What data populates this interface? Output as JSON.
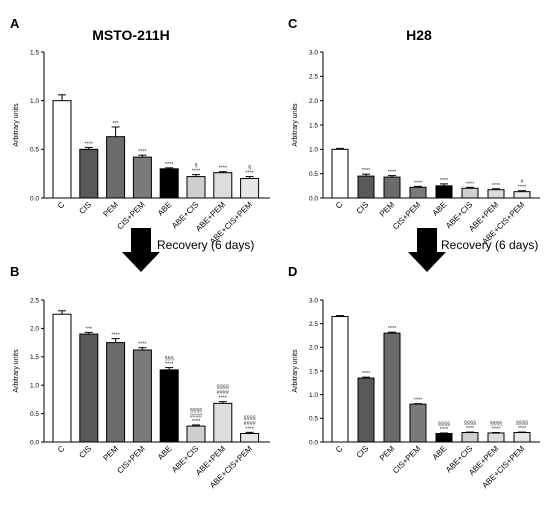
{
  "figure": {
    "recovery_label": "Recovery (6 days)",
    "colors": {
      "C": "#ffffff",
      "CIS": "#595959",
      "PEM": "#6b6b6b",
      "CIS+PEM": "#7a7a7a",
      "ABE": "#000000",
      "ABE+CIS": "#cfcfcf",
      "ABE+PEM": "#dcdcdc",
      "ABE+CIS+PEM": "#e6e6e6"
    }
  },
  "chart_data": [
    {
      "letter": "A",
      "title": "MSTO-211H",
      "type": "bar",
      "categories": [
        "C",
        "CIS",
        "PEM",
        "CIS+PEM",
        "ABE",
        "ABE+CIS",
        "ABE+PEM",
        "ABE+CIS+PEM"
      ],
      "values": [
        1.0,
        0.5,
        0.63,
        0.42,
        0.3,
        0.22,
        0.26,
        0.2
      ],
      "errors": [
        0.06,
        0.02,
        0.1,
        0.02,
        0.01,
        0.02,
        0.01,
        0.02
      ],
      "annotations": [
        [],
        [
          "****"
        ],
        [
          "***"
        ],
        [
          "****"
        ],
        [
          "****"
        ],
        [
          "§",
          "****"
        ],
        [
          "****"
        ],
        [
          "§",
          "****"
        ]
      ],
      "ylabel": "Arbitrary units",
      "ylim": [
        0,
        1.5
      ],
      "yticks": [
        "0.0",
        "0.5",
        "1.0",
        "1.5"
      ],
      "ytick_values": [
        0,
        0.5,
        1.0,
        1.5
      ]
    },
    {
      "letter": "C",
      "title": "H28",
      "type": "bar",
      "categories": [
        "C",
        "CIS",
        "PEM",
        "CIS+PEM",
        "ABE",
        "ABE+CIS",
        "ABE+PEM",
        "ABE+CIS+PEM"
      ],
      "values": [
        1.0,
        0.45,
        0.43,
        0.22,
        0.25,
        0.2,
        0.17,
        0.13
      ],
      "errors": [
        0.02,
        0.04,
        0.03,
        0.02,
        0.04,
        0.02,
        0.02,
        0.02
      ],
      "annotations": [
        [],
        [
          "****"
        ],
        [
          "****"
        ],
        [
          "****"
        ],
        [
          "****"
        ],
        [
          "****"
        ],
        [
          "****"
        ],
        [
          "#",
          "****"
        ]
      ],
      "ylabel": "Arbitrary units",
      "ylim": [
        0,
        3.0
      ],
      "yticks": [
        "0.0",
        "0.5",
        "1.0",
        "1.5",
        "2.0",
        "2.5",
        "3.0"
      ],
      "ytick_values": [
        0,
        0.5,
        1.0,
        1.5,
        2.0,
        2.5,
        3.0
      ]
    },
    {
      "letter": "B",
      "title": "",
      "type": "bar",
      "categories": [
        "C",
        "CIS",
        "PEM",
        "CIS+PEM",
        "ABE",
        "ABE+CIS",
        "ABE+PEM",
        "ABE+CIS+PEM"
      ],
      "values": [
        2.25,
        1.9,
        1.75,
        1.62,
        1.27,
        0.28,
        0.68,
        0.15
      ],
      "errors": [
        0.06,
        0.03,
        0.07,
        0.04,
        0.04,
        0.02,
        0.03,
        0.02
      ],
      "annotations": [
        [],
        [
          "***"
        ],
        [
          "****"
        ],
        [
          "****"
        ],
        [
          "§§§",
          "****"
        ],
        [
          "§§§§",
          "####",
          "****"
        ],
        [
          "§§§§",
          "####",
          "****"
        ],
        [
          "§§§§",
          "####",
          "****"
        ]
      ],
      "ylabel": "Arbitrary units",
      "ylim": [
        0,
        2.5
      ],
      "yticks": [
        "0.0",
        "0.5",
        "1.0",
        "1.5",
        "2.0",
        "2.5"
      ],
      "ytick_values": [
        0,
        0.5,
        1.0,
        1.5,
        2.0,
        2.5
      ]
    },
    {
      "letter": "D",
      "title": "",
      "type": "bar",
      "categories": [
        "C",
        "CIS",
        "PEM",
        "CIS+PEM",
        "ABE",
        "ABE+CIS",
        "ABE+PEM",
        "ABE+CIS+PEM"
      ],
      "values": [
        2.65,
        1.35,
        2.3,
        0.8,
        0.18,
        0.2,
        0.19,
        0.2
      ],
      "errors": [
        0.02,
        0.02,
        0.02,
        0.01,
        0.01,
        0.01,
        0.01,
        0.01
      ],
      "annotations": [
        [],
        [
          "****"
        ],
        [
          "****"
        ],
        [
          "****"
        ],
        [
          "§§§§",
          "****"
        ],
        [
          "§§§§",
          "****"
        ],
        [
          "§§§§",
          "****"
        ],
        [
          "§§§§",
          "****"
        ]
      ],
      "ylabel": "Arbitrary units",
      "ylim": [
        0,
        3.0
      ],
      "yticks": [
        "0.0",
        "0.5",
        "1.0",
        "1.5",
        "2.0",
        "2.5",
        "3.0"
      ],
      "ytick_values": [
        0,
        0.5,
        1.0,
        1.5,
        2.0,
        2.5,
        3.0
      ]
    }
  ]
}
